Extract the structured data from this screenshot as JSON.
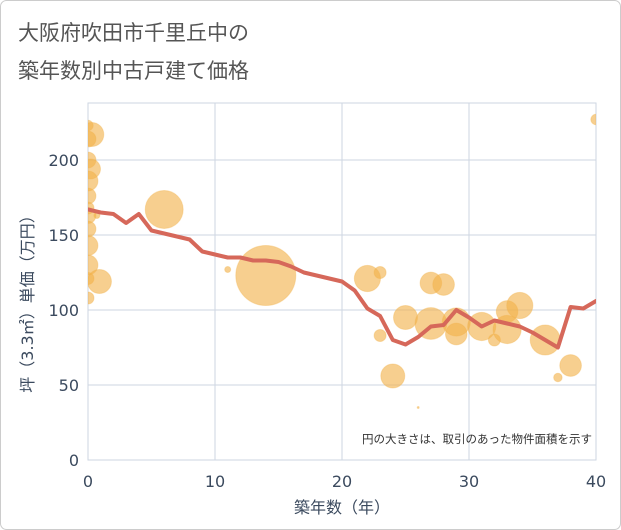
{
  "chart_data": {
    "type": "scatter",
    "title": [
      "大阪府吹田市千里丘中の",
      "築年数別中古戸建て価格"
    ],
    "xlabel": "築年数（年）",
    "ylabel": "坪（3.3㎡）単価（万円）",
    "xlim": [
      0,
      40
    ],
    "ylim": [
      0,
      238
    ],
    "x_ticks": [
      0,
      10,
      20,
      30,
      40
    ],
    "y_ticks": [
      0,
      50,
      100,
      150,
      200
    ],
    "grid": true,
    "annotation": "円の大きさは、取引のあった物件面積を示す",
    "series": [
      {
        "type": "bubble",
        "color": "#f2b24a",
        "points": [
          {
            "x": 0,
            "y": 223,
            "size": 0.03
          },
          {
            "x": 0.3,
            "y": 217,
            "size": 0.16
          },
          {
            "x": 0,
            "y": 214,
            "size": 0.07
          },
          {
            "x": 0,
            "y": 200,
            "size": 0.07
          },
          {
            "x": 0.2,
            "y": 194,
            "size": 0.11
          },
          {
            "x": 0,
            "y": 186,
            "size": 0.11
          },
          {
            "x": 0,
            "y": 176,
            "size": 0.07
          },
          {
            "x": 0,
            "y": 168,
            "size": 0.04
          },
          {
            "x": 0.7,
            "y": 163,
            "size": 0.01
          },
          {
            "x": 0,
            "y": 163,
            "size": 0.07
          },
          {
            "x": 0,
            "y": 154,
            "size": 0.07
          },
          {
            "x": 0,
            "y": 143,
            "size": 0.11
          },
          {
            "x": 0,
            "y": 130,
            "size": 0.11
          },
          {
            "x": 0,
            "y": 121,
            "size": 0.04
          },
          {
            "x": 0.9,
            "y": 119,
            "size": 0.16
          },
          {
            "x": 0,
            "y": 108,
            "size": 0.04
          },
          {
            "x": 6,
            "y": 167,
            "size": 0.4
          },
          {
            "x": 11,
            "y": 127,
            "size": 0.01
          },
          {
            "x": 14,
            "y": 123,
            "size": 1.0
          },
          {
            "x": 22,
            "y": 121,
            "size": 0.19
          },
          {
            "x": 23,
            "y": 125,
            "size": 0.04
          },
          {
            "x": 23,
            "y": 83,
            "size": 0.04
          },
          {
            "x": 24,
            "y": 56,
            "size": 0.16
          },
          {
            "x": 25,
            "y": 95,
            "size": 0.16
          },
          {
            "x": 26,
            "y": 35,
            "size": 0.001
          },
          {
            "x": 27,
            "y": 118,
            "size": 0.13
          },
          {
            "x": 28,
            "y": 117,
            "size": 0.13
          },
          {
            "x": 27,
            "y": 91,
            "size": 0.28
          },
          {
            "x": 29,
            "y": 92,
            "size": 0.22
          },
          {
            "x": 29,
            "y": 84,
            "size": 0.13
          },
          {
            "x": 31,
            "y": 89,
            "size": 0.22
          },
          {
            "x": 32,
            "y": 80,
            "size": 0.04
          },
          {
            "x": 33,
            "y": 99,
            "size": 0.13
          },
          {
            "x": 33,
            "y": 87,
            "size": 0.22
          },
          {
            "x": 34,
            "y": 103,
            "size": 0.19
          },
          {
            "x": 36,
            "y": 80,
            "size": 0.25
          },
          {
            "x": 37,
            "y": 55,
            "size": 0.02
          },
          {
            "x": 38,
            "y": 63,
            "size": 0.13
          },
          {
            "x": 40,
            "y": 227,
            "size": 0.03
          }
        ]
      },
      {
        "type": "line",
        "color": "#d6685a",
        "x": [
          0,
          1,
          2,
          3,
          4,
          5,
          6,
          7,
          8,
          9,
          10,
          11,
          12,
          13,
          14,
          15,
          16,
          17,
          18,
          19,
          20,
          21,
          22,
          23,
          24,
          25,
          26,
          27,
          28,
          29,
          30,
          31,
          32,
          33,
          34,
          35,
          36,
          37,
          38,
          39,
          40
        ],
        "y": [
          167,
          165,
          164,
          158,
          164,
          153,
          151,
          149,
          147,
          139,
          137,
          135,
          135,
          133,
          133,
          132,
          129,
          125,
          123,
          121,
          119,
          113,
          101,
          96,
          80,
          77,
          82,
          89,
          90,
          100,
          95,
          89,
          93,
          91,
          89,
          85,
          80,
          75,
          102,
          101,
          106
        ]
      }
    ]
  }
}
